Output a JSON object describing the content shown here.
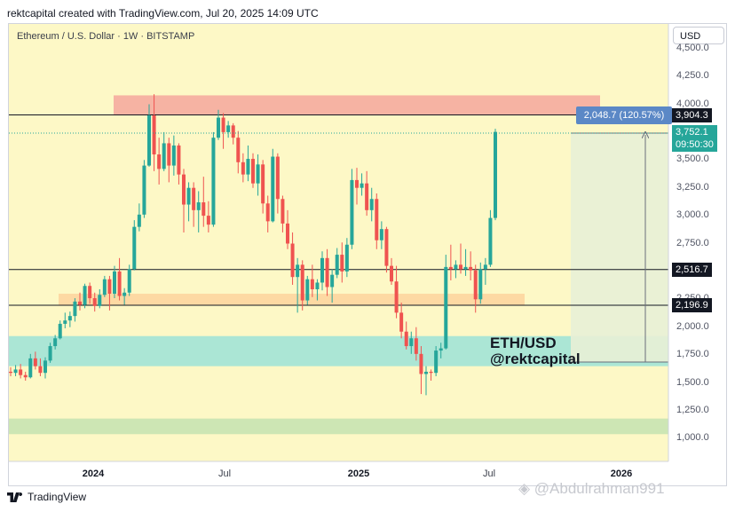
{
  "header": {
    "credit": "rektcapital created with TradingView.com, Jul 20, 2025 14:09 UTC"
  },
  "chart_header": {
    "symbol_line": "Ethereum / U.S. Dollar · 1W · BITSTAMP",
    "currency_button": "USD"
  },
  "footer": {
    "brand": "TradingView",
    "watermark": "@Abdulrahman991"
  },
  "colors": {
    "background": "#fdf8c6",
    "up": "#26a69a",
    "down": "#ef5350",
    "resistance_zone": "#f6b3a3",
    "support_zone": "#fdd9a3",
    "teal_zone": "#abe6d5",
    "green_zone": "#cde6b4",
    "measure": "#5b88c6",
    "current_price": "#26a69a"
  },
  "chart_data": {
    "type": "candlestick",
    "title": "Ethereum / U.S. Dollar · 1W · BITSTAMP",
    "ylim": [
      800,
      4600
    ],
    "y_ticks": [
      "4,500.0",
      "4,250.0",
      "4,000.0",
      "3,750.0",
      "3,500.0",
      "3,250.0",
      "3,000.0",
      "2,750.0",
      "2,500.0",
      "2,250.0",
      "2,000.0",
      "1,750.0",
      "1,500.0",
      "1,250.0",
      "1,000.0"
    ],
    "x_ticks": [
      {
        "label": "2024",
        "bold": true
      },
      {
        "label": "Jul",
        "bold": false
      },
      {
        "label": "2025",
        "bold": true
      },
      {
        "label": "Jul",
        "bold": false
      },
      {
        "label": "2026",
        "bold": true
      }
    ],
    "horizontal_lines": [
      3904.3,
      2516.7,
      2196.9
    ],
    "zones": [
      {
        "name": "resistance",
        "from": 3900,
        "to": 4080
      },
      {
        "name": "support",
        "from": 2200,
        "to": 2300
      },
      {
        "name": "accumulation",
        "from": 1650,
        "to": 1920
      },
      {
        "name": "lower",
        "from": 1040,
        "to": 1180
      }
    ],
    "price_labels": [
      {
        "value": "3,904.3",
        "style": "black"
      },
      {
        "value": "3,752.1",
        "sub": "09:50:30",
        "style": "current"
      },
      {
        "value": "2,516.7",
        "style": "black"
      },
      {
        "value": "2,196.9",
        "style": "black"
      }
    ],
    "measurement": {
      "label": "2,048.7 (120.57%)",
      "from": 1703.4,
      "to": 3752.1
    },
    "annotations": [
      "ETH/USD",
      "@rektcapital"
    ],
    "candles": [
      {
        "o": 1600,
        "h": 1640,
        "l": 1560,
        "c": 1590
      },
      {
        "o": 1590,
        "h": 1660,
        "l": 1560,
        "c": 1620
      },
      {
        "o": 1620,
        "h": 1670,
        "l": 1540,
        "c": 1570
      },
      {
        "o": 1570,
        "h": 1600,
        "l": 1520,
        "c": 1550
      },
      {
        "o": 1550,
        "h": 1760,
        "l": 1540,
        "c": 1720
      },
      {
        "o": 1720,
        "h": 1780,
        "l": 1620,
        "c": 1650
      },
      {
        "o": 1650,
        "h": 1720,
        "l": 1560,
        "c": 1590
      },
      {
        "o": 1590,
        "h": 1730,
        "l": 1540,
        "c": 1700
      },
      {
        "o": 1700,
        "h": 1860,
        "l": 1680,
        "c": 1830
      },
      {
        "o": 1830,
        "h": 1930,
        "l": 1800,
        "c": 1900
      },
      {
        "o": 1900,
        "h": 2060,
        "l": 1890,
        "c": 2030
      },
      {
        "o": 2030,
        "h": 2130,
        "l": 1990,
        "c": 2060
      },
      {
        "o": 2060,
        "h": 2140,
        "l": 2000,
        "c": 2100
      },
      {
        "o": 2100,
        "h": 2260,
        "l": 2050,
        "c": 2230
      },
      {
        "o": 2230,
        "h": 2310,
        "l": 2150,
        "c": 2200
      },
      {
        "o": 2200,
        "h": 2390,
        "l": 2170,
        "c": 2370
      },
      {
        "o": 2370,
        "h": 2400,
        "l": 2210,
        "c": 2260
      },
      {
        "o": 2260,
        "h": 2310,
        "l": 2140,
        "c": 2190
      },
      {
        "o": 2190,
        "h": 2340,
        "l": 2170,
        "c": 2290
      },
      {
        "o": 2290,
        "h": 2460,
        "l": 2270,
        "c": 2430
      },
      {
        "o": 2430,
        "h": 2460,
        "l": 2150,
        "c": 2300
      },
      {
        "o": 2300,
        "h": 2550,
        "l": 2260,
        "c": 2500
      },
      {
        "o": 2500,
        "h": 2620,
        "l": 2240,
        "c": 2280
      },
      {
        "o": 2280,
        "h": 2350,
        "l": 2200,
        "c": 2310
      },
      {
        "o": 2310,
        "h": 2560,
        "l": 2280,
        "c": 2520
      },
      {
        "o": 2520,
        "h": 2960,
        "l": 2510,
        "c": 2900
      },
      {
        "o": 2900,
        "h": 3110,
        "l": 2860,
        "c": 3010
      },
      {
        "o": 3010,
        "h": 3500,
        "l": 2980,
        "c": 3450
      },
      {
        "o": 3450,
        "h": 4000,
        "l": 3440,
        "c": 3900
      },
      {
        "o": 3900,
        "h": 4090,
        "l": 3400,
        "c": 3550
      },
      {
        "o": 3550,
        "h": 3700,
        "l": 3280,
        "c": 3420
      },
      {
        "o": 3420,
        "h": 3750,
        "l": 3400,
        "c": 3650
      },
      {
        "o": 3650,
        "h": 3700,
        "l": 3300,
        "c": 3450
      },
      {
        "o": 3450,
        "h": 3720,
        "l": 3360,
        "c": 3630
      },
      {
        "o": 3630,
        "h": 3650,
        "l": 3280,
        "c": 3370
      },
      {
        "o": 3370,
        "h": 3420,
        "l": 2850,
        "c": 3100
      },
      {
        "o": 3100,
        "h": 3300,
        "l": 2950,
        "c": 3250
      },
      {
        "o": 3250,
        "h": 3300,
        "l": 2900,
        "c": 3050
      },
      {
        "o": 3050,
        "h": 3220,
        "l": 2850,
        "c": 3120
      },
      {
        "o": 3120,
        "h": 3350,
        "l": 2900,
        "c": 3000
      },
      {
        "o": 3000,
        "h": 3130,
        "l": 2850,
        "c": 2920
      },
      {
        "o": 2920,
        "h": 3750,
        "l": 2900,
        "c": 3700
      },
      {
        "o": 3700,
        "h": 3950,
        "l": 3680,
        "c": 3880
      },
      {
        "o": 3880,
        "h": 3920,
        "l": 3600,
        "c": 3750
      },
      {
        "o": 3750,
        "h": 3850,
        "l": 3700,
        "c": 3810
      },
      {
        "o": 3810,
        "h": 3830,
        "l": 3640,
        "c": 3700
      },
      {
        "o": 3700,
        "h": 3760,
        "l": 3380,
        "c": 3480
      },
      {
        "o": 3480,
        "h": 3560,
        "l": 3300,
        "c": 3370
      },
      {
        "o": 3370,
        "h": 3630,
        "l": 3310,
        "c": 3510
      },
      {
        "o": 3510,
        "h": 3560,
        "l": 3250,
        "c": 3290
      },
      {
        "o": 3290,
        "h": 3550,
        "l": 3180,
        "c": 3460
      },
      {
        "o": 3460,
        "h": 3500,
        "l": 3020,
        "c": 3110
      },
      {
        "o": 3110,
        "h": 3180,
        "l": 2850,
        "c": 2950
      },
      {
        "o": 2950,
        "h": 3600,
        "l": 2940,
        "c": 3530
      },
      {
        "o": 3530,
        "h": 3560,
        "l": 3020,
        "c": 3150
      },
      {
        "o": 3150,
        "h": 3180,
        "l": 2850,
        "c": 2930
      },
      {
        "o": 2930,
        "h": 3050,
        "l": 2700,
        "c": 2750
      },
      {
        "o": 2750,
        "h": 2850,
        "l": 2380,
        "c": 2450
      },
      {
        "o": 2450,
        "h": 2620,
        "l": 2130,
        "c": 2560
      },
      {
        "o": 2560,
        "h": 2600,
        "l": 2150,
        "c": 2240
      },
      {
        "o": 2240,
        "h": 2460,
        "l": 2200,
        "c": 2430
      },
      {
        "o": 2430,
        "h": 2560,
        "l": 2270,
        "c": 2340
      },
      {
        "o": 2340,
        "h": 2430,
        "l": 2240,
        "c": 2400
      },
      {
        "o": 2400,
        "h": 2680,
        "l": 2330,
        "c": 2620
      },
      {
        "o": 2620,
        "h": 2700,
        "l": 2280,
        "c": 2360
      },
      {
        "o": 2360,
        "h": 2520,
        "l": 2220,
        "c": 2470
      },
      {
        "o": 2470,
        "h": 2710,
        "l": 2440,
        "c": 2650
      },
      {
        "o": 2650,
        "h": 2760,
        "l": 2400,
        "c": 2500
      },
      {
        "o": 2500,
        "h": 2800,
        "l": 2450,
        "c": 2740
      },
      {
        "o": 2740,
        "h": 3420,
        "l": 2700,
        "c": 3320
      },
      {
        "o": 3320,
        "h": 3430,
        "l": 3100,
        "c": 3250
      },
      {
        "o": 3250,
        "h": 3380,
        "l": 3180,
        "c": 3290
      },
      {
        "o": 3290,
        "h": 3400,
        "l": 3000,
        "c": 3050
      },
      {
        "o": 3050,
        "h": 3250,
        "l": 2950,
        "c": 3150
      },
      {
        "o": 3150,
        "h": 3200,
        "l": 2700,
        "c": 2780
      },
      {
        "o": 2780,
        "h": 2950,
        "l": 2700,
        "c": 2880
      },
      {
        "o": 2880,
        "h": 2900,
        "l": 2490,
        "c": 2550
      },
      {
        "o": 2550,
        "h": 2620,
        "l": 2380,
        "c": 2410
      },
      {
        "o": 2410,
        "h": 2550,
        "l": 2080,
        "c": 2130
      },
      {
        "o": 2130,
        "h": 2220,
        "l": 1900,
        "c": 1960
      },
      {
        "o": 1960,
        "h": 2050,
        "l": 1800,
        "c": 1830
      },
      {
        "o": 1830,
        "h": 1960,
        "l": 1760,
        "c": 1900
      },
      {
        "o": 1900,
        "h": 2000,
        "l": 1700,
        "c": 1760
      },
      {
        "o": 1760,
        "h": 1830,
        "l": 1400,
        "c": 1580
      },
      {
        "o": 1580,
        "h": 1650,
        "l": 1390,
        "c": 1600
      },
      {
        "o": 1600,
        "h": 1620,
        "l": 1520,
        "c": 1590
      },
      {
        "o": 1590,
        "h": 1830,
        "l": 1560,
        "c": 1790
      },
      {
        "o": 1790,
        "h": 1860,
        "l": 1720,
        "c": 1810
      },
      {
        "o": 1810,
        "h": 2650,
        "l": 1800,
        "c": 2540
      },
      {
        "o": 2540,
        "h": 2740,
        "l": 2420,
        "c": 2520
      },
      {
        "o": 2520,
        "h": 2600,
        "l": 2440,
        "c": 2560
      },
      {
        "o": 2560,
        "h": 2750,
        "l": 2480,
        "c": 2520
      },
      {
        "o": 2520,
        "h": 2700,
        "l": 2460,
        "c": 2540
      },
      {
        "o": 2540,
        "h": 2680,
        "l": 2420,
        "c": 2510
      },
      {
        "o": 2510,
        "h": 2560,
        "l": 2130,
        "c": 2250
      },
      {
        "o": 2250,
        "h": 2580,
        "l": 2210,
        "c": 2520
      },
      {
        "o": 2520,
        "h": 2620,
        "l": 2380,
        "c": 2560
      },
      {
        "o": 2560,
        "h": 3050,
        "l": 2540,
        "c": 2980
      },
      {
        "o": 2980,
        "h": 3780,
        "l": 2960,
        "c": 3752.1
      }
    ]
  }
}
